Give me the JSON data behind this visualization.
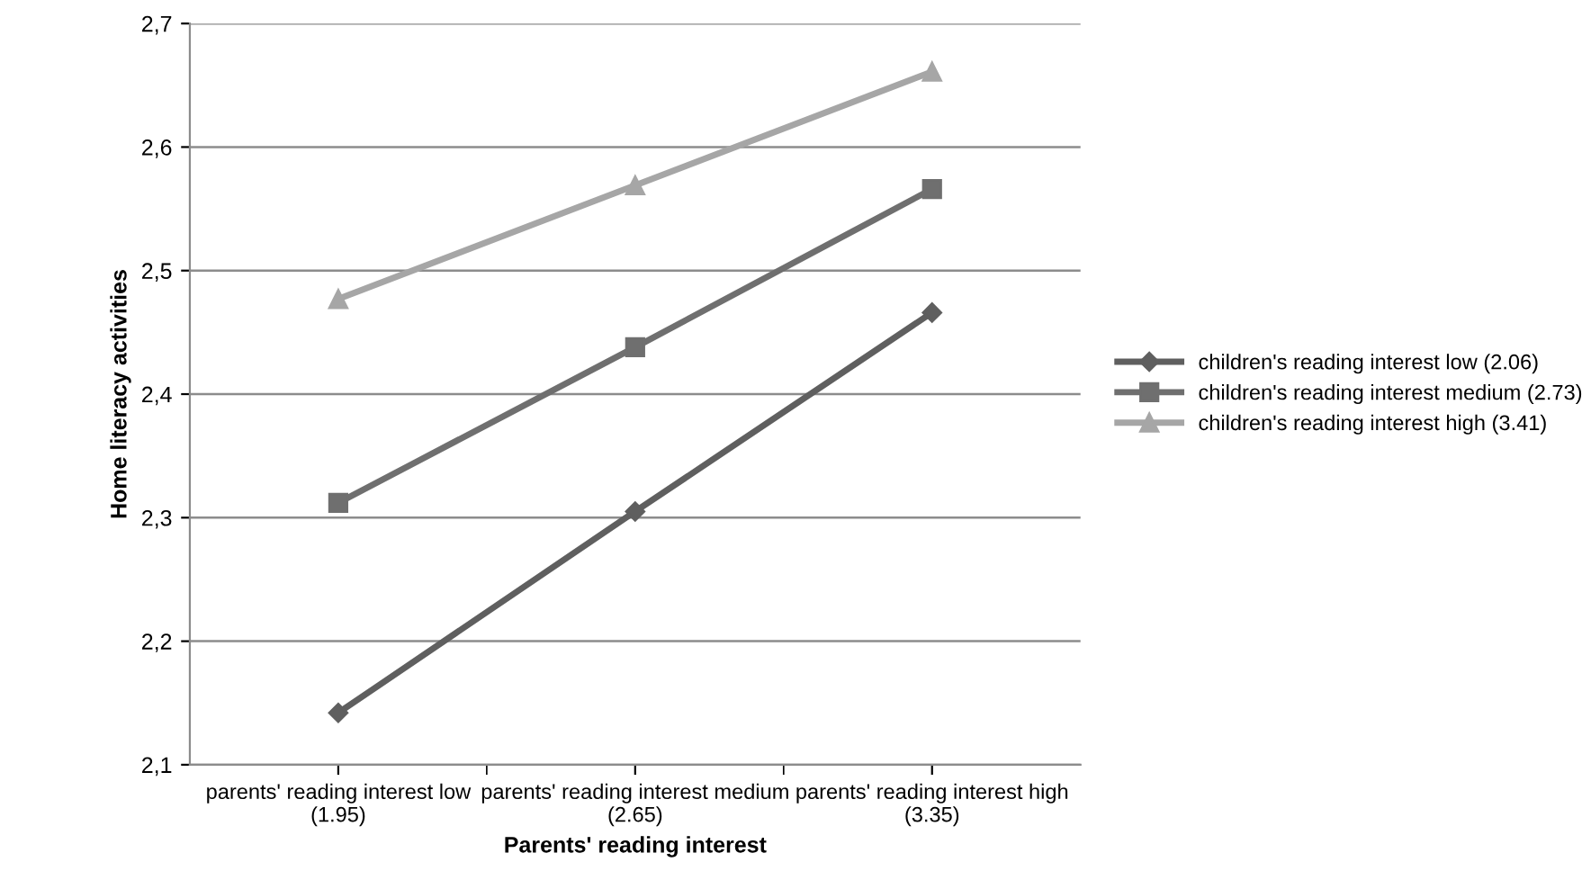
{
  "chart_data": {
    "type": "line",
    "xlabel": "Parents' reading interest",
    "ylabel": "Home literacy activities",
    "categories": [
      "parents' reading interest low (1.95)",
      "parents' reading interest medium (2.65)",
      "parents' reading interest high (3.35)"
    ],
    "series": [
      {
        "name": "children's reading interest low (2.06)",
        "color": "#5f5f5f",
        "marker": "diamond",
        "values": [
          2.142,
          2.305,
          2.466
        ]
      },
      {
        "name": "children's reading interest medium (2.73)",
        "color": "#6f6f6f",
        "marker": "square",
        "values": [
          2.312,
          2.438,
          2.566
        ]
      },
      {
        "name": "children's reading interest high (3.41)",
        "color": "#a6a6a6",
        "marker": "triangle",
        "values": [
          2.477,
          2.569,
          2.661
        ]
      }
    ],
    "ylim": [
      2.1,
      2.7
    ],
    "yticks": [
      {
        "value": 2.1,
        "label": "2,1"
      },
      {
        "value": 2.2,
        "label": "2,2"
      },
      {
        "value": 2.3,
        "label": "2,3"
      },
      {
        "value": 2.4,
        "label": "2,4"
      },
      {
        "value": 2.5,
        "label": "2,5"
      },
      {
        "value": 2.6,
        "label": "2,6"
      },
      {
        "value": 2.7,
        "label": "2,7"
      }
    ],
    "grid": "y",
    "legend": "right",
    "line_style": "solid"
  }
}
